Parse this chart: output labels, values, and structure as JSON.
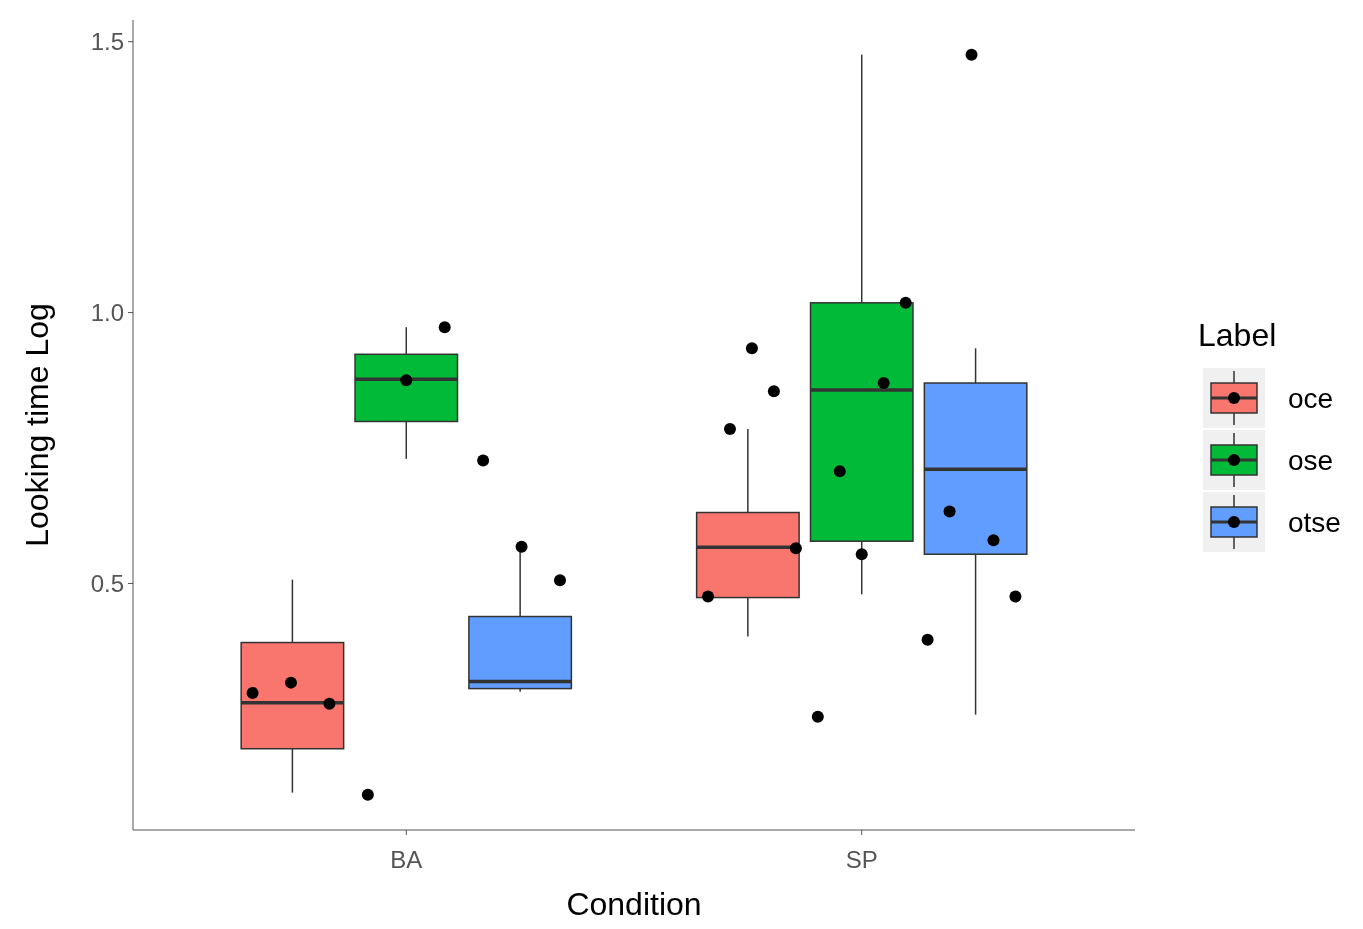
{
  "chart_data": {
    "type": "box",
    "xlabel": "Condition",
    "ylabel": "Looking time Log",
    "legend_title": "Label",
    "categories": [
      "BA",
      "SP"
    ],
    "ylim": [
      0.045,
      1.54
    ],
    "yticks": [
      0.5,
      {
        "value": 1,
        "label": "1.0"
      },
      1.5
    ],
    "grid": false,
    "legend": "right",
    "series": [
      {
        "name": "oce",
        "color": "#f8766d",
        "boxes": [
          {
            "low": 0.114,
            "q1": 0.195,
            "median": 0.28,
            "q3": 0.391,
            "high": 0.507
          },
          {
            "low": 0.402,
            "q1": 0.474,
            "median": 0.567,
            "q3": 0.631,
            "high": 0.785
          }
        ]
      },
      {
        "name": "ose",
        "color": "#00ba38",
        "boxes": [
          {
            "low": 0.73,
            "q1": 0.799,
            "median": 0.877,
            "q3": 0.923,
            "high": 0.973
          },
          {
            "low": 0.48,
            "q1": 0.578,
            "median": 0.857,
            "q3": 1.018,
            "high": 1.476
          }
        ]
      },
      {
        "name": "otse",
        "color": "#619cff",
        "boxes": [
          {
            "low": 0.3,
            "q1": 0.306,
            "median": 0.319,
            "q3": 0.439,
            "high": 0.565
          },
          {
            "low": 0.258,
            "q1": 0.554,
            "median": 0.711,
            "q3": 0.87,
            "high": 0.934
          }
        ]
      },
      {
        "type": "scatter",
        "color": "#000000",
        "marker": "circle",
        "x": [
          "BA",
          "BA",
          "BA",
          "BA",
          "BA",
          "BA",
          "BA",
          "BA",
          "BA",
          "SP",
          "SP",
          "SP",
          "SP",
          "SP",
          "SP",
          "SP",
          "SP",
          "SP",
          "SP",
          "SP",
          "SP",
          "SP",
          "SP",
          "SP"
        ],
        "values": [
          0.298,
          0.317,
          0.278,
          0.11,
          0.875,
          0.973,
          0.727,
          0.568,
          0.506,
          0.476,
          0.785,
          0.934,
          0.855,
          0.565,
          0.254,
          0.707,
          0.554,
          0.87,
          1.018,
          0.396,
          0.633,
          1.476,
          0.58,
          0.476
        ]
      }
    ]
  }
}
